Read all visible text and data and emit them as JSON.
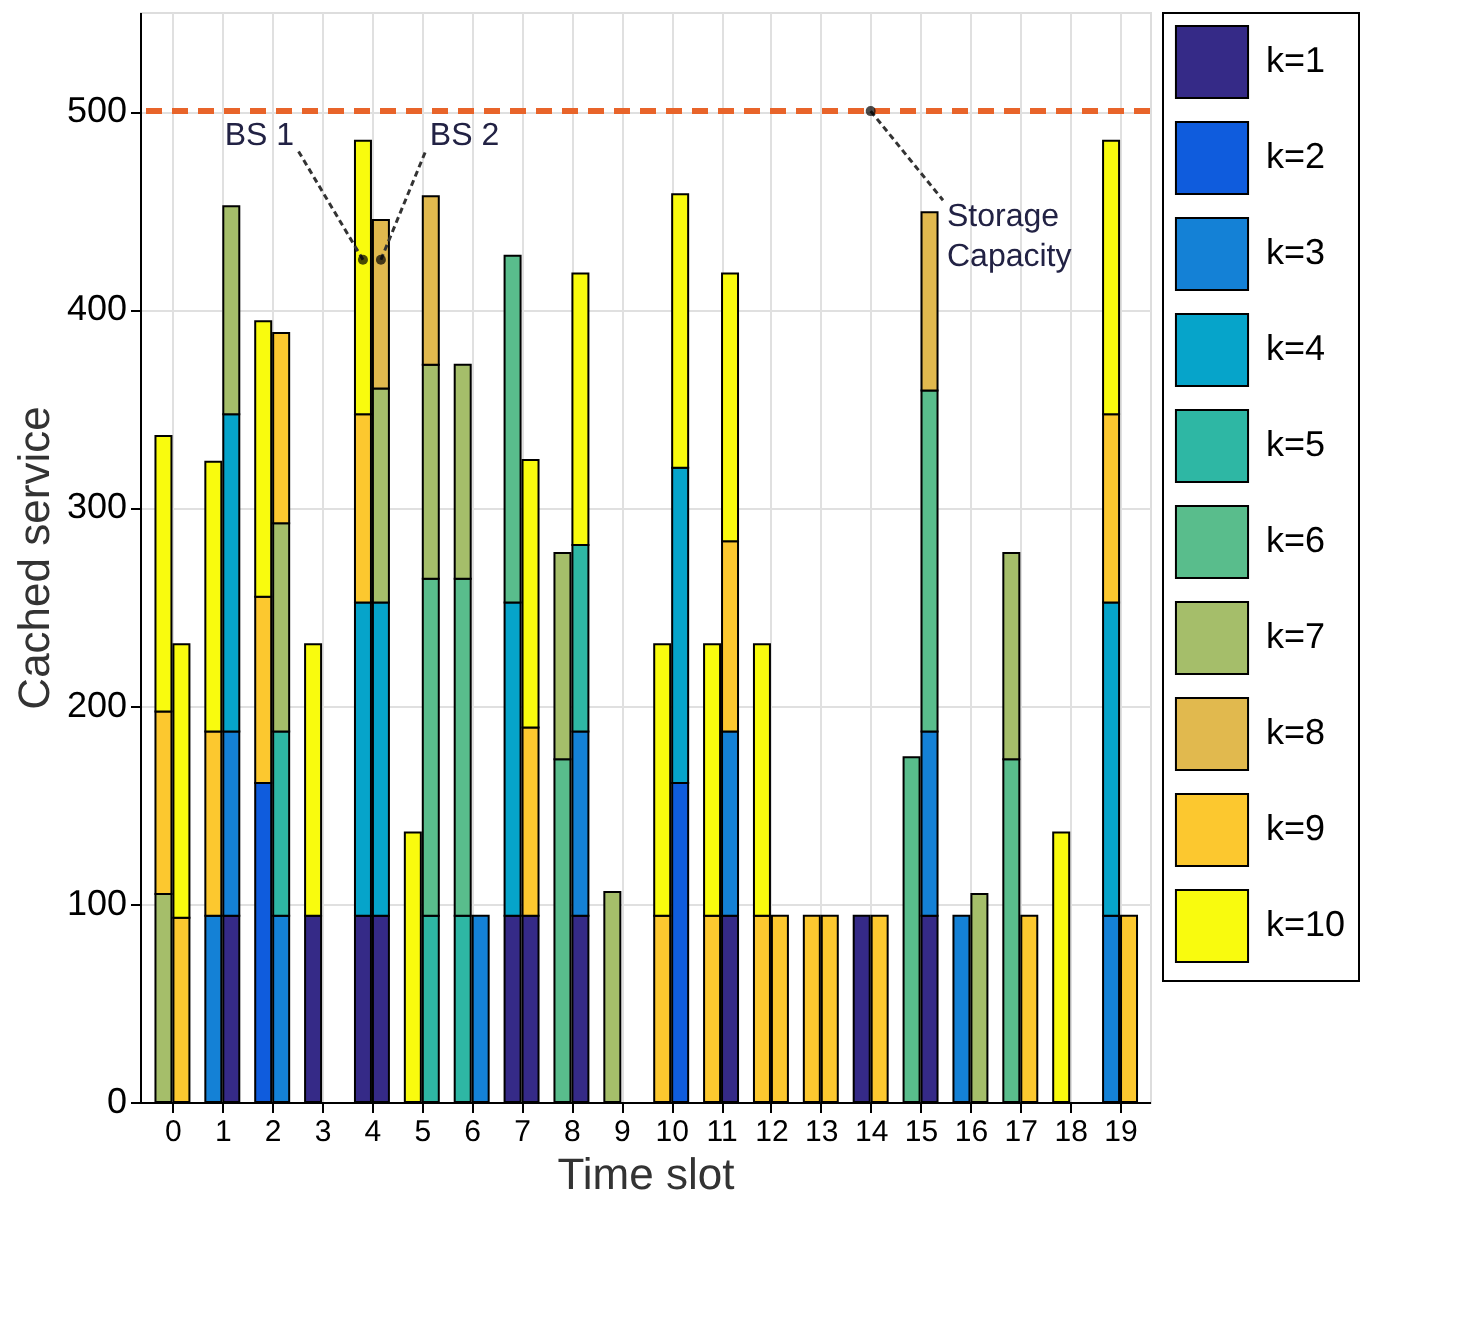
{
  "chart_data": {
    "type": "bar",
    "stacked": true,
    "xlabel": "Time slot",
    "ylabel": "Cached service",
    "x": [
      -0.18,
      0.18,
      0.82,
      1.18,
      1.82,
      2.18,
      2.82,
      3.18,
      3.82,
      4.18,
      4.82,
      5.18,
      5.82,
      6.18,
      6.82,
      7.18,
      7.82,
      8.18,
      8.82,
      9.18,
      9.82,
      10.18,
      10.82,
      11.18,
      11.82,
      12.18,
      12.82,
      13.18,
      13.82,
      14.18,
      14.82,
      15.18,
      15.82,
      16.18,
      16.82,
      17.18,
      17.82,
      18.18,
      18.82,
      19.18
    ],
    "series": [
      {
        "name": "k=1",
        "color": "#352a87",
        "values": [
          null,
          null,
          null,
          94,
          null,
          null,
          94,
          null,
          94,
          94,
          null,
          null,
          null,
          null,
          94,
          94,
          null,
          94,
          null,
          null,
          null,
          null,
          null,
          94,
          null,
          null,
          null,
          null,
          94,
          null,
          null,
          94,
          null,
          null,
          null,
          null,
          null,
          null,
          null,
          null
        ]
      },
      {
        "name": "k=2",
        "color": "#0f5cdd",
        "values": [
          null,
          null,
          null,
          null,
          161,
          null,
          null,
          null,
          null,
          null,
          null,
          null,
          null,
          null,
          null,
          null,
          null,
          null,
          null,
          null,
          null,
          161,
          null,
          null,
          null,
          null,
          null,
          null,
          null,
          null,
          null,
          null,
          null,
          null,
          null,
          null,
          null,
          null,
          null,
          null
        ]
      },
      {
        "name": "k=3",
        "color": "#1481d6",
        "values": [
          null,
          null,
          94,
          93,
          null,
          94,
          null,
          null,
          null,
          null,
          null,
          null,
          null,
          94,
          null,
          null,
          null,
          93,
          null,
          null,
          null,
          null,
          null,
          93,
          null,
          null,
          null,
          null,
          null,
          null,
          null,
          93,
          94,
          null,
          null,
          null,
          null,
          null,
          94,
          null
        ]
      },
      {
        "name": "k=4",
        "color": "#06a4ca",
        "values": [
          null,
          null,
          null,
          160,
          null,
          null,
          null,
          null,
          158,
          158,
          null,
          null,
          null,
          null,
          158,
          null,
          null,
          null,
          null,
          null,
          null,
          159,
          null,
          null,
          null,
          null,
          null,
          null,
          null,
          null,
          null,
          null,
          null,
          null,
          null,
          null,
          null,
          null,
          158,
          null
        ]
      },
      {
        "name": "k=5",
        "color": "#2eb7a4",
        "values": [
          null,
          null,
          null,
          null,
          null,
          93,
          null,
          null,
          null,
          null,
          null,
          94,
          94,
          null,
          null,
          null,
          null,
          94,
          null,
          null,
          null,
          null,
          null,
          null,
          null,
          null,
          null,
          null,
          null,
          null,
          null,
          null,
          null,
          null,
          null,
          null,
          null,
          null,
          null,
          null
        ]
      },
      {
        "name": "k=6",
        "color": "#59bd8c",
        "values": [
          null,
          null,
          null,
          null,
          null,
          null,
          null,
          null,
          null,
          null,
          null,
          170,
          170,
          null,
          175,
          null,
          173,
          null,
          null,
          null,
          null,
          null,
          null,
          null,
          null,
          null,
          null,
          null,
          null,
          null,
          174,
          172,
          null,
          null,
          173,
          null,
          null,
          null,
          null,
          null
        ]
      },
      {
        "name": "k=7",
        "color": "#a5be6a",
        "values": [
          105,
          null,
          null,
          105,
          null,
          105,
          null,
          null,
          null,
          108,
          null,
          108,
          108,
          null,
          null,
          null,
          104,
          null,
          106,
          null,
          null,
          null,
          null,
          null,
          null,
          null,
          null,
          null,
          null,
          null,
          null,
          null,
          null,
          105,
          104,
          null,
          null,
          null,
          null,
          null
        ]
      },
      {
        "name": "k=8",
        "color": "#e1b94e",
        "values": [
          null,
          null,
          null,
          null,
          null,
          null,
          null,
          null,
          null,
          85,
          null,
          85,
          null,
          null,
          null,
          null,
          null,
          null,
          null,
          null,
          null,
          null,
          null,
          null,
          null,
          null,
          null,
          null,
          null,
          null,
          null,
          90,
          null,
          null,
          null,
          null,
          null,
          null,
          null,
          null
        ]
      },
      {
        "name": "k=9",
        "color": "#fcc82f",
        "values": [
          92,
          93,
          93,
          null,
          94,
          96,
          null,
          null,
          95,
          null,
          null,
          null,
          null,
          null,
          null,
          95,
          null,
          null,
          null,
          null,
          94,
          null,
          94,
          96,
          94,
          94,
          94,
          94,
          null,
          94,
          null,
          null,
          null,
          null,
          null,
          94,
          null,
          null,
          95,
          94
        ]
      },
      {
        "name": "k=10",
        "color": "#f9fb0e",
        "values": [
          139,
          138,
          136,
          null,
          139,
          null,
          137,
          null,
          138,
          null,
          136,
          null,
          null,
          null,
          null,
          135,
          null,
          137,
          null,
          null,
          137,
          138,
          137,
          135,
          137,
          null,
          null,
          null,
          null,
          null,
          null,
          null,
          null,
          null,
          null,
          null,
          136,
          null,
          138,
          null
        ]
      }
    ],
    "xlim": [
      -0.45,
      19.4
    ],
    "xticks": [
      0,
      1,
      2,
      3,
      4,
      5,
      6,
      7,
      8,
      9,
      10,
      11,
      12,
      13,
      14,
      15,
      16,
      17,
      18,
      19
    ],
    "ylim": [
      0,
      550
    ],
    "yticks": [
      0,
      100,
      200,
      300,
      400,
      500
    ],
    "ref_lines": [
      {
        "axis": "y",
        "value": 500,
        "color": "#e8642a",
        "line_style": "dashed"
      }
    ],
    "annotations": [
      {
        "text": "BS 1",
        "x": 3.82,
        "y": 425
      },
      {
        "text": "BS 2",
        "x": 4.18,
        "y": 425
      },
      {
        "text": "Storage Capacity",
        "x": 14,
        "y": 500
      }
    ],
    "grid": true,
    "legend": "right"
  }
}
